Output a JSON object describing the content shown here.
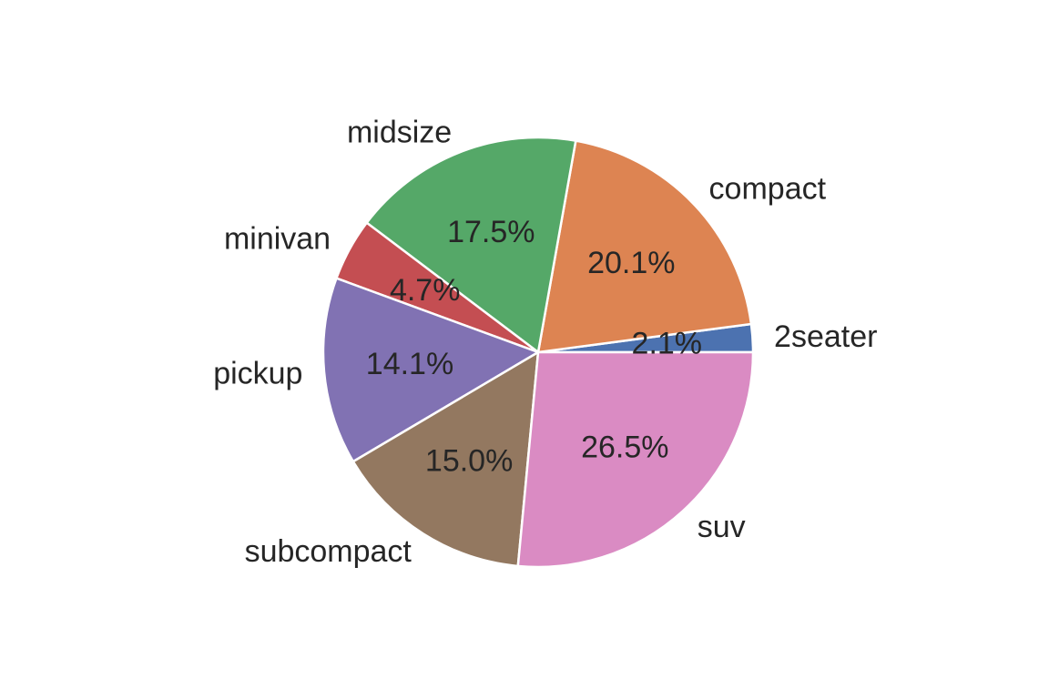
{
  "chart_data": {
    "type": "pie",
    "categories": [
      "2seater",
      "compact",
      "midsize",
      "minivan",
      "pickup",
      "subcompact",
      "suv"
    ],
    "values": [
      2.1,
      20.1,
      17.5,
      4.7,
      14.1,
      15.0,
      26.5
    ],
    "value_labels": [
      "2.1%",
      "20.1%",
      "17.5%",
      "4.7%",
      "14.1%",
      "15.0%",
      "26.5%"
    ],
    "colors": [
      "#4c72b0",
      "#dd8452",
      "#55a868",
      "#c44e52",
      "#8172b3",
      "#937860",
      "#da8bc3"
    ],
    "start_angle_deg": 0,
    "direction": "counterclockwise",
    "title": "",
    "legend": "none"
  }
}
